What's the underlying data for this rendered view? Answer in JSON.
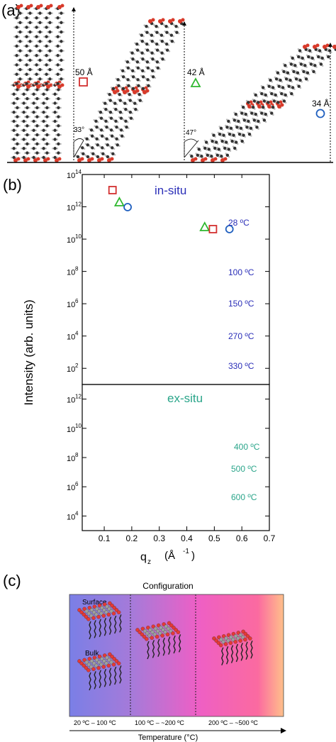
{
  "panel_a": {
    "label": "(a)",
    "spacings": [
      {
        "text": "50 Å",
        "marker": "square",
        "color": "#d32f2f"
      },
      {
        "text": "42 Å",
        "marker": "triangle",
        "color": "#2eb82e"
      },
      {
        "text": "34 Å",
        "marker": "circle",
        "color": "#1f5fbf"
      }
    ],
    "tilts": [
      "33°",
      "47°"
    ]
  },
  "chart_data": {
    "type": "line",
    "panel_label": "(b)",
    "xlabel": "q",
    "xlabel_sub": "z",
    "xunit": "(Å",
    "xunit_sup": "-1",
    "xunit_close": ")",
    "ylabel": "Intensity (arb. units)",
    "xlim": [
      0.02,
      0.7
    ],
    "xticks": [
      "0.1",
      "0.2",
      "0.3",
      "0.4",
      "0.5",
      "0.6",
      "0.7"
    ],
    "yscale": "log",
    "insitu": {
      "title": "in-situ",
      "color": "#2b2fb8",
      "ylim_exp": [
        1,
        14
      ],
      "yticks": [
        "10",
        "10",
        "10",
        "10",
        "10",
        "10",
        "10"
      ],
      "yticks_exp": [
        "2",
        "4",
        "6",
        "8",
        "10",
        "12",
        "14"
      ],
      "series": [
        {
          "name": "28 ºC"
        },
        {
          "name": "100 ºC"
        },
        {
          "name": "150 ºC"
        },
        {
          "name": "270 ºC"
        },
        {
          "name": "330 ºC"
        }
      ],
      "markers": [
        {
          "shape": "square",
          "q": 0.13,
          "color": "#d32f2f"
        },
        {
          "shape": "triangle",
          "q": 0.155,
          "color": "#2eb82e"
        },
        {
          "shape": "circle",
          "q": 0.185,
          "color": "#1f5fbf"
        },
        {
          "shape": "triangle",
          "q": 0.465,
          "color": "#2eb82e"
        },
        {
          "shape": "square",
          "q": 0.495,
          "color": "#d32f2f"
        },
        {
          "shape": "circle",
          "q": 0.555,
          "color": "#1f5fbf"
        }
      ]
    },
    "exsitu": {
      "title": "ex-situ",
      "color": "#2aa58a",
      "ylim_exp": [
        3,
        13
      ],
      "yticks": [
        "10",
        "10",
        "10",
        "10",
        "10"
      ],
      "yticks_exp": [
        "4",
        "6",
        "8",
        "10",
        "12"
      ],
      "series": [
        {
          "name": "400 ºC"
        },
        {
          "name": "500 ºC"
        },
        {
          "name": "600 ºC"
        }
      ]
    }
  },
  "panel_c": {
    "label": "(c)",
    "title": "Configuration",
    "surface_label": "Surface",
    "bulk_label": "Bulk",
    "ranges": [
      "20 ºC – 100 ºC",
      "100 ºC – ~200 ºC",
      "200 ºC – ~500 ºC"
    ],
    "axis_label": "Temperature (°C)"
  }
}
